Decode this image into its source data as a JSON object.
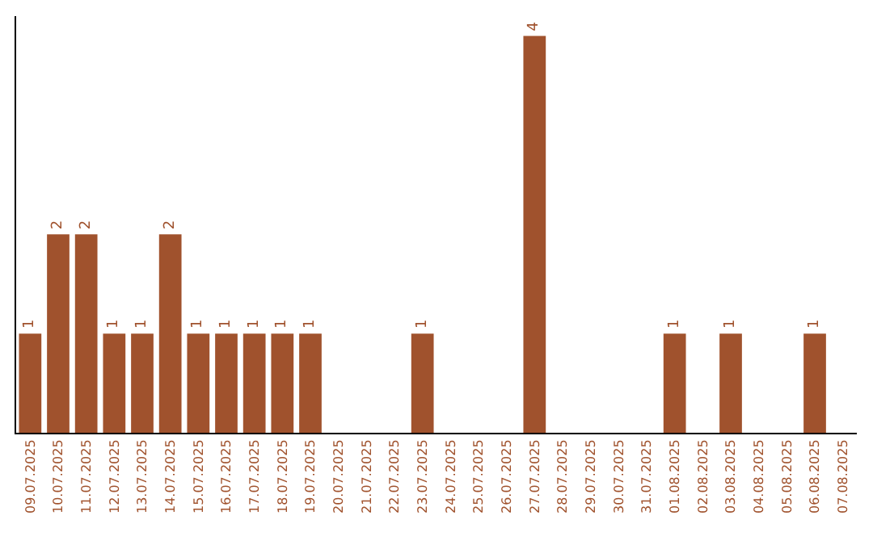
{
  "chart_data": {
    "type": "bar",
    "categories": [
      "09.07.2025",
      "10.07.2025",
      "11.07.2025",
      "12.07.2025",
      "13.07.2025",
      "14.07.2025",
      "15.07.2025",
      "16.07.2025",
      "17.07.2025",
      "18.07.2025",
      "19.07.2025",
      "20.07.2025",
      "21.07.2025",
      "22.07.2025",
      "23.07.2025",
      "24.07.2025",
      "25.07.2025",
      "26.07.2025",
      "27.07.2025",
      "28.07.2025",
      "29.07.2025",
      "30.07.2025",
      "31.07.2025",
      "01.08.2025",
      "02.08.2025",
      "03.08.2025",
      "04.08.2025",
      "05.08.2025",
      "06.08.2025",
      "07.08.2025"
    ],
    "values": [
      1,
      2,
      2,
      1,
      1,
      2,
      1,
      1,
      1,
      1,
      1,
      0,
      0,
      0,
      1,
      0,
      0,
      0,
      4,
      0,
      0,
      0,
      0,
      1,
      0,
      1,
      0,
      0,
      1,
      0
    ],
    "value_labels": [
      "1",
      "2",
      "2",
      "1",
      "1",
      "2",
      "1",
      "1",
      "1",
      "1",
      "1",
      null,
      null,
      null,
      "1",
      null,
      null,
      null,
      "4",
      null,
      null,
      null,
      null,
      "1",
      null,
      "1",
      null,
      null,
      "1",
      null
    ],
    "color": "#a0522d",
    "ylim": [
      0,
      4.2
    ],
    "tick_labels": "x"
  }
}
